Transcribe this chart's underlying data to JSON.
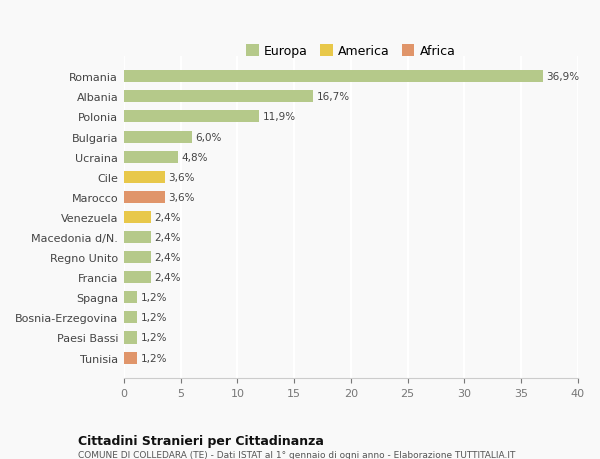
{
  "categories": [
    "Romania",
    "Albania",
    "Polonia",
    "Bulgaria",
    "Ucraina",
    "Cile",
    "Marocco",
    "Venezuela",
    "Macedonia d/N.",
    "Regno Unito",
    "Francia",
    "Spagna",
    "Bosnia-Erzegovina",
    "Paesi Bassi",
    "Tunisia"
  ],
  "values": [
    36.9,
    16.7,
    11.9,
    6.0,
    4.8,
    3.6,
    3.6,
    2.4,
    2.4,
    2.4,
    2.4,
    1.2,
    1.2,
    1.2,
    1.2
  ],
  "continents": [
    "Europa",
    "Europa",
    "Europa",
    "Europa",
    "Europa",
    "America",
    "Africa",
    "America",
    "Europa",
    "Europa",
    "Europa",
    "Europa",
    "Europa",
    "Europa",
    "Africa"
  ],
  "colors": {
    "Europa": "#b5c98a",
    "America": "#e8c84a",
    "Africa": "#e0956a"
  },
  "legend_order": [
    "Europa",
    "America",
    "Africa"
  ],
  "xlim": [
    0,
    40
  ],
  "xticks": [
    0,
    5,
    10,
    15,
    20,
    25,
    30,
    35,
    40
  ],
  "title1": "Cittadini Stranieri per Cittadinanza",
  "title2": "COMUNE DI COLLEDARA (TE) - Dati ISTAT al 1° gennaio di ogni anno - Elaborazione TUTTITALIA.IT",
  "background_color": "#f9f9f9",
  "grid_color": "#ffffff"
}
